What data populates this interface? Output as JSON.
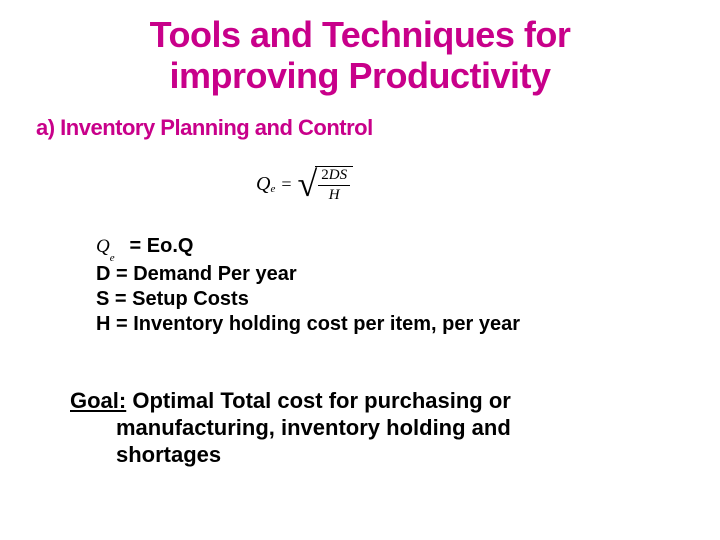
{
  "title": {
    "line1": "Tools and Techniques  for",
    "line2": "improving Productivity",
    "color": "#c8008a",
    "fontsize": 36
  },
  "subtitle": {
    "text": "a)  Inventory Planning and Control",
    "color": "#c8008a",
    "fontsize": 22
  },
  "formula": {
    "lhs_symbol": "Q",
    "lhs_sub": "e",
    "numerator_prefix": "2",
    "numerator_vars": "DS",
    "denominator": "H",
    "color": "#000000"
  },
  "definitions": {
    "fontsize": 20,
    "color": "#000000",
    "eoq_symbol": "Q",
    "eoq_sub": "e",
    "eoq_rhs": " = Eo.Q",
    "d": "D = Demand Per year",
    "s": "S = Setup Costs",
    "h": "H = Inventory holding cost per item, per year"
  },
  "goal": {
    "fontsize": 22,
    "color": "#000000",
    "label": "Goal:",
    "line1_rest": " Optimal Total cost for purchasing or",
    "line2": "manufacturing, inventory holding and",
    "line3": "shortages"
  }
}
